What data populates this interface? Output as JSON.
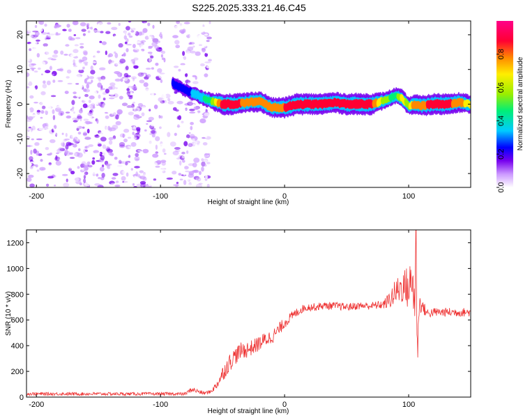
{
  "chart_data": [
    {
      "type": "heatmap",
      "title": "S225.2025.333.21.46.C45",
      "xlabel": "Height of straight line (km)",
      "ylabel": "Frequency (Hz)",
      "xlim": [
        -208,
        150
      ],
      "ylim": [
        -24,
        24
      ],
      "x_ticks": [
        -200,
        -100,
        0,
        100
      ],
      "y_ticks": [
        -20,
        -10,
        0,
        10,
        20
      ],
      "colorbar": {
        "label": "Normalized spectral amplitude",
        "range": [
          0,
          1
        ],
        "ticks": [
          "0.0",
          "0.2",
          "0.4",
          "0.6",
          "0.8"
        ],
        "colors": [
          "#ffffff",
          "#cc99ff",
          "#7700ee",
          "#0000ff",
          "#00ccff",
          "#00ee77",
          "#99ee00",
          "#ffee00",
          "#ff8800",
          "#ff0033",
          "#ff0088"
        ]
      },
      "noise_region_x": [
        -208,
        -60
      ],
      "ridge": {
        "x": [
          -90,
          -80,
          -60,
          -50,
          -40,
          -30,
          -20,
          -10,
          0,
          10,
          20,
          30,
          40,
          50,
          60,
          70,
          80,
          90,
          95,
          100,
          105,
          110,
          120,
          130,
          140,
          150
        ],
        "freq": [
          6,
          4,
          1,
          0,
          0,
          0.5,
          0.8,
          -1,
          -1,
          0,
          0,
          0,
          0.5,
          0,
          0,
          0,
          1,
          2.5,
          1.5,
          -0.5,
          0,
          -0.5,
          0,
          0,
          0.5,
          0
        ],
        "amplitude": [
          0.3,
          0.3,
          0.5,
          0.9,
          0.9,
          0.8,
          0.85,
          0.8,
          0.85,
          0.9,
          0.9,
          0.9,
          0.85,
          0.9,
          0.95,
          0.9,
          0.6,
          0.5,
          0.7,
          0.6,
          0.85,
          0.8,
          0.9,
          0.9,
          0.8,
          0.7
        ]
      }
    },
    {
      "type": "line",
      "xlabel": "Height of straight line (km)",
      "ylabel": "SNR (10 * v/v)",
      "xlim": [
        -208,
        150
      ],
      "ylim": [
        0,
        1300
      ],
      "x_ticks": [
        -200,
        -100,
        0,
        100
      ],
      "y_ticks": [
        0,
        200,
        400,
        600,
        800,
        1000,
        1200
      ],
      "color": "#ee3333",
      "series": [
        {
          "x": [
            -208,
            -80,
            -75,
            -65,
            -60,
            -55,
            -50,
            -45,
            -40,
            -35,
            -30,
            -25,
            -20,
            -15,
            -10,
            -5,
            0,
            5,
            10,
            15,
            20,
            25,
            30,
            40,
            50,
            60,
            70,
            80,
            85,
            90,
            95,
            100,
            103,
            105,
            106,
            107,
            108,
            110,
            115,
            120,
            130,
            140,
            150
          ],
          "y": [
            25,
            25,
            60,
            30,
            40,
            90,
            180,
            260,
            320,
            360,
            370,
            390,
            420,
            450,
            470,
            520,
            580,
            620,
            660,
            690,
            700,
            700,
            710,
            710,
            700,
            710,
            710,
            720,
            760,
            820,
            860,
            850,
            900,
            750,
            1300,
            300,
            700,
            720,
            650,
            660,
            660,
            660,
            660
          ],
          "spread": [
            25,
            25,
            40,
            30,
            30,
            60,
            120,
            140,
            140,
            130,
            130,
            120,
            120,
            120,
            110,
            100,
            90,
            80,
            70,
            60,
            60,
            60,
            60,
            60,
            60,
            60,
            60,
            70,
            140,
            220,
            260,
            350,
            400,
            450,
            500,
            450,
            300,
            120,
            80,
            70,
            70,
            70,
            70
          ]
        }
      ]
    }
  ]
}
